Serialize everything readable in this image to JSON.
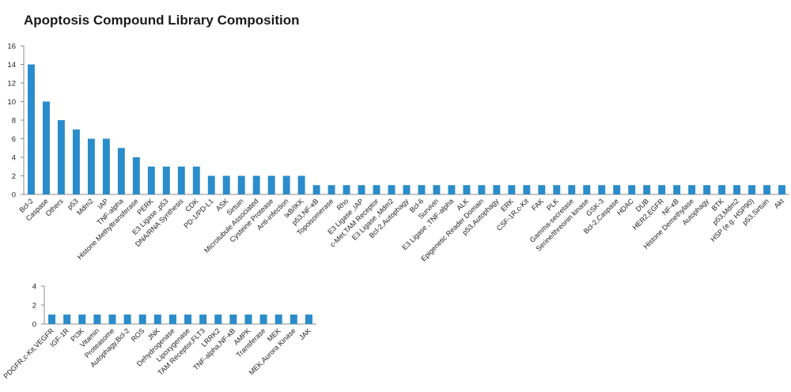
{
  "title": "Apoptosis Compound Library Composition",
  "colors": {
    "bar": "#2a8ccb",
    "axis": "#8c8c8c",
    "text": "#222222"
  },
  "chart_data": [
    {
      "type": "bar",
      "title": "Apoptosis Compound Library Composition",
      "xlabel": "",
      "ylabel": "",
      "ylim": [
        0,
        16
      ],
      "yticks": [
        0,
        2,
        4,
        6,
        8,
        10,
        12,
        14,
        16
      ],
      "grid": false,
      "categories": [
        "Bcl-2",
        "Caspase",
        "Others",
        "p53",
        "Mdm2",
        "IAP",
        "TNF-alpha",
        "Histone Methyltransferase",
        "PERK",
        "E3 Ligase ,p53",
        "DNA/RNA Synthesis",
        "CDK",
        "PD-1/PD-L1",
        "ASK",
        "Sirtuin",
        "Microtubule Associated",
        "Cysteine Protease",
        "Anti-infection",
        "IκB/IKK",
        "p53,NF-κB",
        "Topoisomerase",
        "Rho",
        "E3 Ligase ,IAP",
        "c-Met,TAM Receptor",
        "E3 Ligase ,Mdm2",
        "Bcl-2,Autophagy",
        "Bcl-6",
        "Survivin",
        "E3 Ligase ,TNF-alpha",
        "ALK",
        "Epigenetic Reader Domain",
        "p53,Autophagy",
        "ERK",
        "CSF-1R,c-Kit",
        "FAK",
        "PLK",
        "Gamma-secretase",
        "Serine/threonin kinase",
        "GSK-3",
        "Bcl-2,Caspase",
        "HDAC",
        "DUB",
        "HER2,EGFR",
        "NF-κB",
        "Histone Demethylase",
        "Autophagy",
        "BTK",
        "p53,Mdm2",
        "HSP (e.g. HSP90)",
        "p53,Sirtuin",
        "Akt"
      ],
      "values": [
        14,
        10,
        8,
        7,
        6,
        6,
        5,
        4,
        3,
        3,
        3,
        3,
        2,
        2,
        2,
        2,
        2,
        2,
        2,
        1,
        1,
        1,
        1,
        1,
        1,
        1,
        1,
        1,
        1,
        1,
        1,
        1,
        1,
        1,
        1,
        1,
        1,
        1,
        1,
        1,
        1,
        1,
        1,
        1,
        1,
        1,
        1,
        1,
        1,
        1,
        1
      ]
    },
    {
      "type": "bar",
      "title": "",
      "xlabel": "",
      "ylabel": "",
      "ylim": [
        0,
        4
      ],
      "yticks": [
        0,
        2,
        4
      ],
      "grid": false,
      "categories": [
        "PDGFR,c-Kit,VEGFR",
        "IGF-1R",
        "PI3K",
        "Vitamin",
        "Proteasome",
        "Autophagy,Bcl-2",
        "ROS",
        "JNK",
        "Dehydrogenase",
        "Lipoxygenase",
        "TAM Receptor,FLT3",
        "LRRK2",
        "TNF-alpha,NF-κB",
        "AMPK",
        "Transferase",
        "MEK",
        "MEK,Aurora Kinase",
        "JAK"
      ],
      "values": [
        1,
        1,
        1,
        1,
        1,
        1,
        1,
        1,
        1,
        1,
        1,
        1,
        1,
        1,
        1,
        1,
        1,
        1
      ]
    }
  ]
}
